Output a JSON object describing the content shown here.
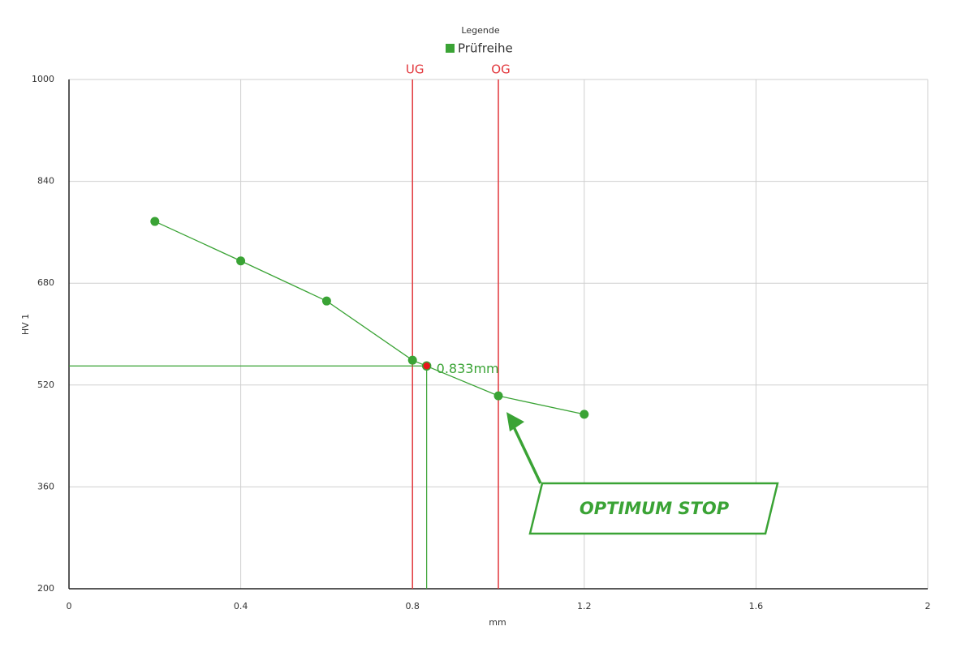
{
  "chart_data": {
    "type": "line",
    "legend_title": "Legende",
    "x_label": "mm",
    "y_label": "HV 1",
    "x": [
      0.2,
      0.4,
      0.6,
      0.8,
      1.0,
      1.2
    ],
    "series": [
      {
        "name": "Prüfreihe",
        "color": "#3aa335",
        "values": [
          777,
          715,
          652,
          559,
          503,
          474
        ]
      }
    ],
    "marker": {
      "x": 0.833,
      "y": 550,
      "label": "0.833mm",
      "color": "#e8151a"
    },
    "limits": [
      {
        "label": "UG",
        "value": 0.8,
        "color": "#e2373c"
      },
      {
        "label": "OG",
        "value": 1.0,
        "color": "#e2373c"
      }
    ],
    "annotation": {
      "text": "OPTIMUM STOP",
      "x": 1.0,
      "y": 503
    },
    "xlim": [
      0,
      2
    ],
    "xticks": [
      0,
      0.4,
      0.8,
      1.2,
      1.6,
      2
    ],
    "ylim": [
      200,
      1000
    ],
    "yticks": [
      200,
      360,
      520,
      680,
      840,
      1000
    ],
    "grid": true
  }
}
